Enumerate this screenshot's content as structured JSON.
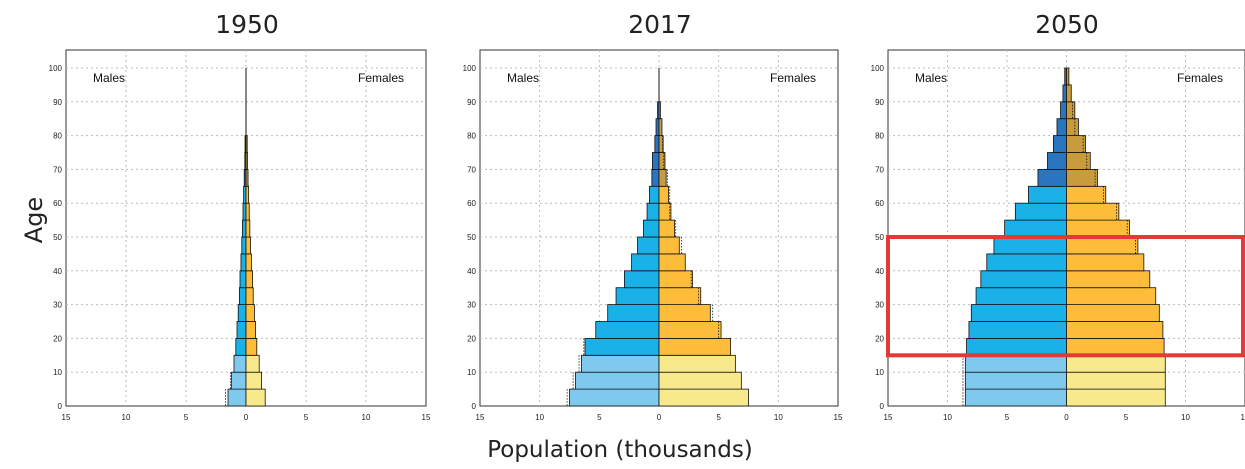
{
  "chart_data": [
    {
      "type": "population-pyramid",
      "title": "1950",
      "ylabel": "Age",
      "xlabel": "Population (thousands)",
      "x_range": [
        -15,
        15
      ],
      "y_range": [
        0,
        100
      ],
      "x_ticks": [
        "15",
        "10",
        "5",
        "0",
        "5",
        "10",
        "15"
      ],
      "y_ticks": [
        "0",
        "10",
        "20",
        "30",
        "40",
        "50",
        "60",
        "70",
        "80",
        "90",
        "100"
      ],
      "left_label": "Males",
      "right_label": "Females",
      "age_groups": [
        "0-4",
        "5-9",
        "10-14",
        "15-19",
        "20-24",
        "25-29",
        "30-34",
        "35-39",
        "40-44",
        "45-49",
        "50-54",
        "55-59",
        "60-64",
        "65-69",
        "70-74",
        "75-79"
      ],
      "males": [
        1.5,
        1.2,
        1.0,
        0.85,
        0.75,
        0.65,
        0.55,
        0.5,
        0.42,
        0.35,
        0.3,
        0.25,
        0.2,
        0.15,
        0.1,
        0.08
      ],
      "females": [
        1.6,
        1.3,
        1.1,
        0.9,
        0.8,
        0.7,
        0.6,
        0.55,
        0.45,
        0.38,
        0.32,
        0.27,
        0.22,
        0.17,
        0.12,
        0.1
      ],
      "males_ref": [
        1.7,
        1.3,
        null,
        null,
        null,
        null,
        null,
        null,
        null,
        null,
        null,
        null,
        null,
        null,
        null,
        null
      ],
      "females_ref": [
        null,
        null,
        null,
        null,
        null,
        null,
        null,
        null,
        null,
        null,
        null,
        null,
        null,
        null,
        null,
        null
      ]
    },
    {
      "type": "population-pyramid",
      "title": "2017",
      "ylabel": "Age",
      "xlabel": "Population (thousands)",
      "x_range": [
        -15,
        15
      ],
      "y_range": [
        0,
        100
      ],
      "x_ticks": [
        "15",
        "10",
        "5",
        "0",
        "5",
        "10",
        "15"
      ],
      "y_ticks": [
        "0",
        "10",
        "20",
        "30",
        "40",
        "50",
        "60",
        "70",
        "80",
        "90",
        "100"
      ],
      "left_label": "Males",
      "right_label": "Females",
      "age_groups": [
        "0-4",
        "5-9",
        "10-14",
        "15-19",
        "20-24",
        "25-29",
        "30-34",
        "35-39",
        "40-44",
        "45-49",
        "50-54",
        "55-59",
        "60-64",
        "65-69",
        "70-74",
        "75-79",
        "80-84",
        "85-89"
      ],
      "males": [
        7.5,
        7.0,
        6.5,
        6.2,
        5.3,
        4.3,
        3.6,
        2.9,
        2.3,
        1.8,
        1.3,
        1.0,
        0.8,
        0.6,
        0.55,
        0.35,
        0.25,
        0.12
      ],
      "females": [
        7.5,
        6.9,
        6.4,
        6.0,
        5.2,
        4.3,
        3.5,
        2.8,
        2.2,
        1.7,
        1.3,
        1.0,
        0.8,
        0.6,
        0.5,
        0.35,
        0.25,
        0.12
      ],
      "males_ref": [
        7.7,
        7.2,
        6.7,
        6.3,
        null,
        null,
        null,
        null,
        null,
        null,
        null,
        null,
        null,
        null,
        null,
        null,
        null,
        null
      ],
      "females_ref": [
        null,
        null,
        null,
        null,
        5.0,
        4.5,
        3.3,
        2.7,
        null,
        1.9,
        1.4,
        0.9,
        0.9,
        0.7,
        0.4,
        0.3,
        null,
        null
      ]
    },
    {
      "type": "population-pyramid",
      "title": "2050",
      "ylabel": "Age",
      "xlabel": "Population (thousands)",
      "x_range": [
        -15,
        15
      ],
      "y_range": [
        0,
        100
      ],
      "x_ticks": [
        "15",
        "10",
        "5",
        "0",
        "5",
        "10",
        "15"
      ],
      "y_ticks": [
        "0",
        "10",
        "20",
        "30",
        "40",
        "50",
        "60",
        "70",
        "80",
        "90",
        "100"
      ],
      "left_label": "Males",
      "right_label": "Females",
      "age_groups": [
        "0-4",
        "5-9",
        "10-14",
        "15-19",
        "20-24",
        "25-29",
        "30-34",
        "35-39",
        "40-44",
        "45-49",
        "50-54",
        "55-59",
        "60-64",
        "65-69",
        "70-74",
        "75-79",
        "80-84",
        "85-89",
        "90-94",
        "95-99"
      ],
      "males": [
        8.5,
        8.5,
        8.5,
        8.4,
        8.2,
        8.0,
        7.6,
        7.2,
        6.7,
        6.1,
        5.2,
        4.3,
        3.2,
        2.4,
        1.6,
        1.1,
        0.8,
        0.5,
        0.3,
        0.15
      ],
      "females": [
        8.3,
        8.3,
        8.3,
        8.2,
        8.1,
        7.8,
        7.5,
        7.0,
        6.5,
        6.0,
        5.3,
        4.4,
        3.3,
        2.6,
        2.0,
        1.6,
        1.0,
        0.7,
        0.4,
        0.2
      ],
      "males_ref": [
        8.7,
        8.7,
        8.7,
        null,
        null,
        null,
        null,
        null,
        null,
        null,
        null,
        null,
        null,
        null,
        null,
        null,
        null,
        null,
        null,
        null
      ],
      "females_ref": [
        null,
        null,
        null,
        null,
        null,
        null,
        null,
        null,
        null,
        5.8,
        5.1,
        4.2,
        3.1,
        2.4,
        1.7,
        1.4,
        0.7,
        0.5,
        null,
        null
      ],
      "highlight": {
        "age_from": 15,
        "age_to": 50,
        "color": "#e53935"
      }
    }
  ],
  "colors": {
    "male_child": "#7fc8ee",
    "male_working": "#1ab0e8",
    "male_old": "#2a75bf",
    "female_child": "#f8ea8c",
    "female_working": "#fdbd3a",
    "female_old": "#c89b3c",
    "grid": "#bbbbbb",
    "highlight": "#e53935"
  }
}
